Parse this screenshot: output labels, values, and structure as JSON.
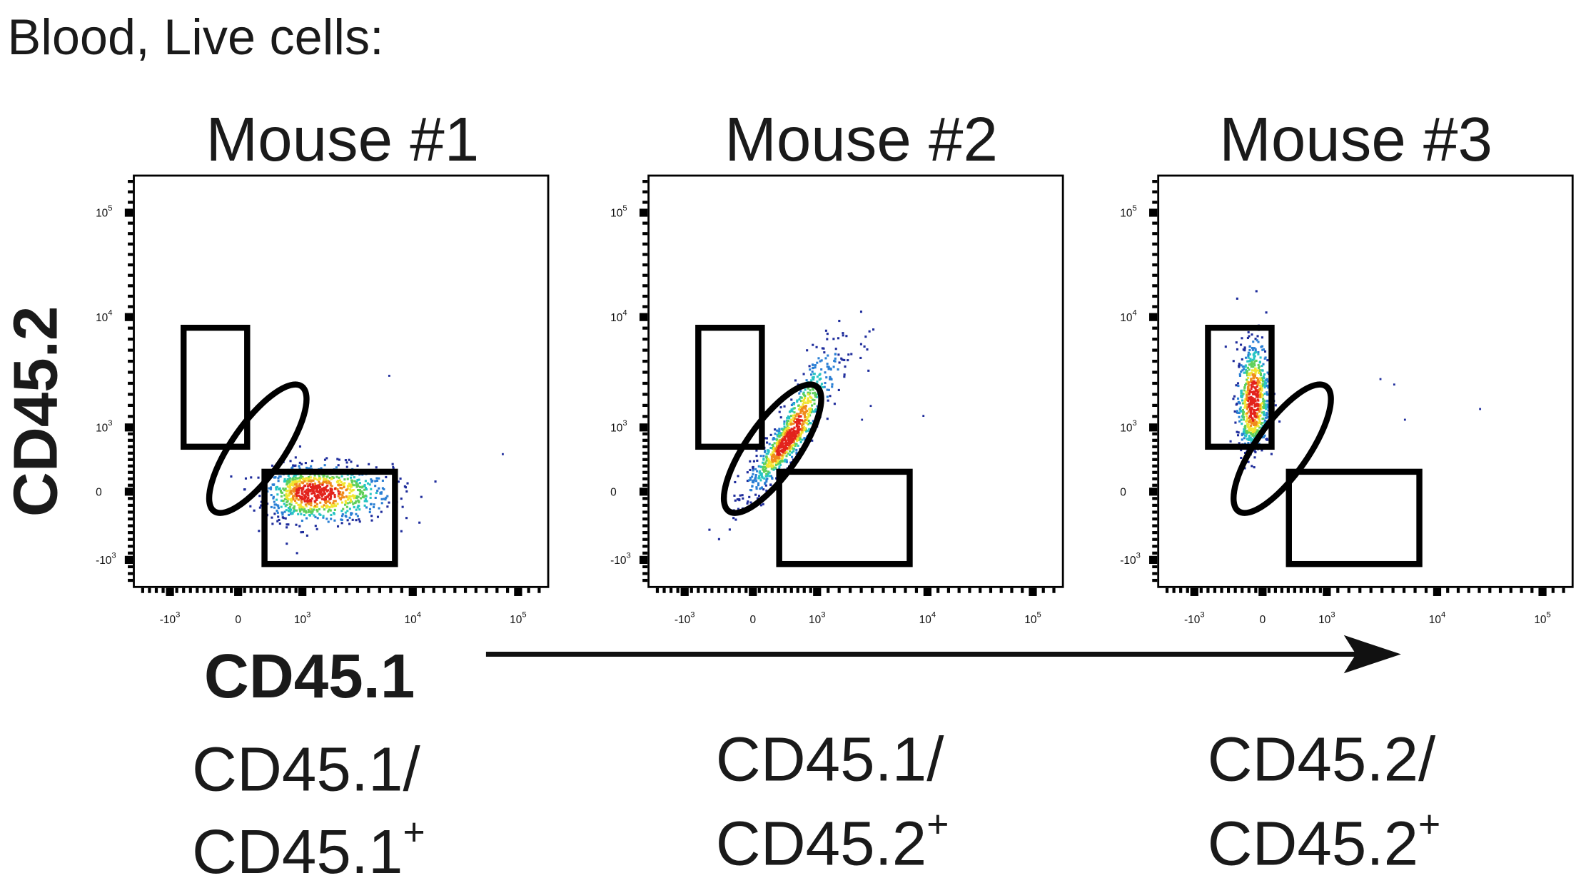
{
  "chart_data": {
    "type": "scatter",
    "title": "Blood, Live cells:",
    "xlabel": "CD45.1",
    "ylabel": "CD45.2",
    "x_ticks": [
      {
        "base": "-10",
        "exp": "3"
      },
      {
        "base": "0",
        "exp": ""
      },
      {
        "base": "10",
        "exp": "3"
      },
      {
        "base": "10",
        "exp": "4"
      },
      {
        "base": "10",
        "exp": "5"
      }
    ],
    "y_ticks": [
      {
        "base": "10",
        "exp": "5"
      },
      {
        "base": "10",
        "exp": "4"
      },
      {
        "base": "10",
        "exp": "3"
      },
      {
        "base": "0",
        "exp": ""
      },
      {
        "base": "-10",
        "exp": "3"
      }
    ],
    "x_tick_values": [
      -1000,
      0,
      1000,
      10000,
      100000
    ],
    "y_tick_values": [
      100000,
      10000,
      1000,
      0,
      -1000
    ],
    "axis_range": [
      -1500,
      250000
    ],
    "scale": "biexponential",
    "gates": {
      "cd45_2_only": {
        "x": [
          -800,
          140
        ],
        "y": [
          700,
          8000
        ]
      },
      "cd45_1_only": {
        "x": [
          410,
          6900
        ],
        "y": [
          -1150,
          310
        ]
      },
      "double_positive_ellipse_center": {
        "x": 400,
        "y": 700
      }
    },
    "panels": [
      {
        "title": "Mouse #1",
        "genotype_line1": "CD45.1/",
        "genotype_line2": "CD45.1",
        "genotype_sup": "+",
        "population": {
          "x_t": 1.1,
          "y_t": 0.0,
          "sx": 0.35,
          "sy": 0.22,
          "corr": 0.0,
          "n": 900
        },
        "outliers": [
          [
            6000,
            3000
          ],
          [
            70000,
            600
          ],
          [
            6500,
            400
          ]
        ]
      },
      {
        "title": "Mouse #2",
        "genotype_line1": "CD45.1/",
        "genotype_line2": "CD45.2",
        "genotype_sup": "+",
        "population": {
          "x_t": 0.55,
          "y_t": 0.85,
          "sx": 0.32,
          "sy": 0.42,
          "corr": 0.9,
          "n": 900
        },
        "outliers": [
          [
            2500,
            1200
          ],
          [
            9000,
            1300
          ],
          [
            3000,
            1600
          ]
        ]
      },
      {
        "title": "Mouse #3",
        "genotype_line1": "CD45.2/",
        "genotype_line2": "CD45.2",
        "genotype_sup": "+",
        "population": {
          "x_t": -0.15,
          "y_t": 1.25,
          "sx": 0.12,
          "sy": 0.28,
          "corr": 0.1,
          "n": 700
        },
        "outliers": [
          [
            3000,
            2800
          ],
          [
            5000,
            1200
          ],
          [
            25000,
            1500
          ],
          [
            4000,
            2500
          ]
        ]
      }
    ]
  },
  "colors": {
    "gate": "#000000",
    "density": [
      "#1f2d9c",
      "#2a7fd4",
      "#26c4c4",
      "#5fd05a",
      "#f2e531",
      "#f08a1c",
      "#e3231c"
    ]
  }
}
